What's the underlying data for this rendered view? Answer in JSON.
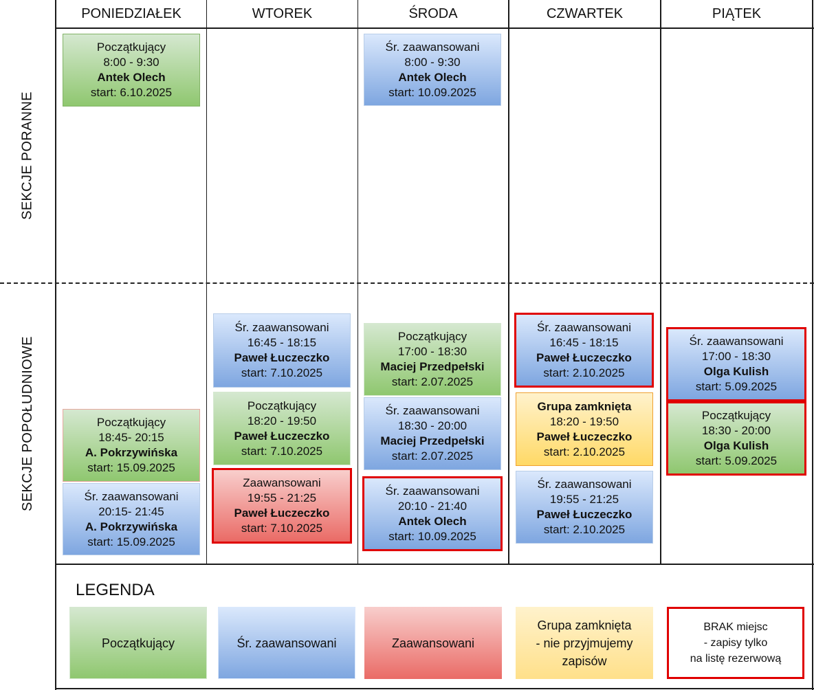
{
  "days": [
    "PONIEDZIAŁEK",
    "WTOREK",
    "ŚRODA",
    "CZWARTEK",
    "PIĄTEK"
  ],
  "sections": {
    "morning": "SEKCJE PORANNE",
    "afternoon": "SEKCJE POPOŁUDNIOWE"
  },
  "cards": {
    "mon_am": {
      "level": "Początkujący",
      "time": "8:00 - 9:30",
      "teacher": "Antek Olech",
      "start": "start: 6.10.2025"
    },
    "wed_am": {
      "level": "Śr. zaawansowani",
      "time": "8:00 - 9:30",
      "teacher": "Antek Olech",
      "start": "start: 10.09.2025"
    },
    "mon_pm1": {
      "level": "Początkujący",
      "time": "18:45- 20:15",
      "teacher": "A. Pokrzywińska",
      "start": "start: 15.09.2025"
    },
    "mon_pm2": {
      "level": "Śr. zaawansowani",
      "time": "20:15- 21:45",
      "teacher": "A. Pokrzywińska",
      "start": "start: 15.09.2025"
    },
    "tue_pm1": {
      "level": "Śr. zaawansowani",
      "time": "16:45 - 18:15",
      "teacher": "Paweł Łuczeczko",
      "start": "start: 7.10.2025"
    },
    "tue_pm2": {
      "level": "Początkujący",
      "time": "18:20 - 19:50",
      "teacher": "Paweł Łuczeczko",
      "start": "start: 7.10.2025"
    },
    "tue_pm3": {
      "level": "Zaawansowani",
      "time": "19:55 - 21:25",
      "teacher": "Paweł Łuczeczko",
      "start": "start: 7.10.2025"
    },
    "wed_pm1": {
      "level": "Początkujący",
      "time": "17:00 - 18:30",
      "teacher": "Maciej Przedpełski",
      "start": "start: 2.07.2025"
    },
    "wed_pm2": {
      "level": "Śr. zaawansowani",
      "time": "18:30 - 20:00",
      "teacher": "Maciej Przedpełski",
      "start": "start: 2.07.2025"
    },
    "wed_pm3": {
      "level": "Śr. zaawansowani",
      "time": "20:10 - 21:40",
      "teacher": "Antek Olech",
      "start": "start: 10.09.2025"
    },
    "thu_pm1": {
      "level": "Śr. zaawansowani",
      "time": "16:45 - 18:15",
      "teacher": "Paweł Łuczeczko",
      "start": "start: 2.10.2025"
    },
    "thu_pm2": {
      "level": "Grupa zamknięta",
      "time": "18:20 - 19:50",
      "teacher": "Paweł Łuczeczko",
      "start": "start: 2.10.2025"
    },
    "thu_pm3": {
      "level": "Śr. zaawansowani",
      "time": "19:55 - 21:25",
      "teacher": "Paweł Łuczeczko",
      "start": "start: 2.10.2025"
    },
    "fri_pm1": {
      "level": "Śr. zaawansowani",
      "time": "17:00 - 18:30",
      "teacher": "Olga Kulish",
      "start": "start: 5.09.2025"
    },
    "fri_pm2": {
      "level": "Początkujący",
      "time": "18:30 - 20:00",
      "teacher": "Olga Kulish",
      "start": "start: 5.09.2025"
    }
  },
  "legend": {
    "title": "LEGENDA",
    "beginner": "Początkujący",
    "intermediate": "Śr. zaawansowani",
    "advanced": "Zaawansowani",
    "closed": [
      "Grupa zamknięta",
      "- nie przyjmujemy",
      "zapisów"
    ],
    "full": [
      "BRAK miejsc",
      "- zapisy tylko",
      "na listę rezerwową"
    ]
  },
  "colors": {
    "beginner": "#8fc76f",
    "intermediate": "#7ea6e0",
    "advanced": "#ea6b66",
    "closed": "#ffd966",
    "full_border": "#e00000"
  }
}
